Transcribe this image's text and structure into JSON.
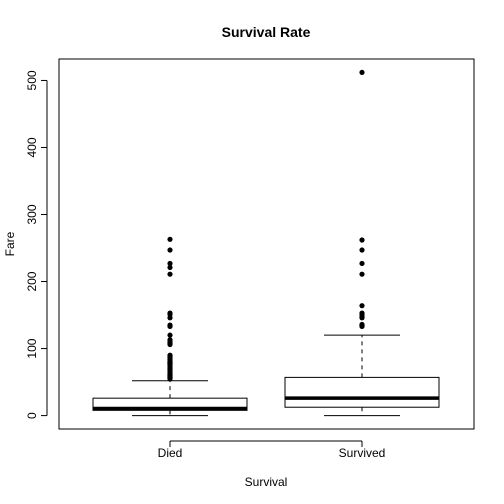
{
  "chart_data": {
    "type": "box",
    "title": "Survival Rate",
    "xlabel": "Survival",
    "ylabel": "Fare",
    "categories": [
      "Died",
      "Survived"
    ],
    "yticks": [
      "0",
      "100",
      "200",
      "300",
      "400",
      "500"
    ],
    "ylim": [
      -20,
      532
    ],
    "grid": false,
    "legend": "none",
    "series": [
      {
        "category": "Died",
        "whisker_low": 0,
        "q1": 7.85,
        "median": 10.5,
        "q3": 26,
        "whisker_high": 52,
        "outliers": [
          55,
          56,
          56.5,
          57,
          58,
          59,
          59.4,
          61,
          61.2,
          63,
          65,
          66.6,
          69.3,
          69.5,
          71,
          73.5,
          75,
          76.7,
          77.3,
          78,
          79,
          79.6,
          80,
          82.2,
          83.5,
          86.5,
          89,
          90,
          106,
          108,
          110,
          113,
          120,
          133,
          135,
          146,
          151,
          153,
          211,
          221,
          227,
          247,
          263
        ]
      },
      {
        "category": "Survived",
        "whisker_low": 0,
        "q1": 12.5,
        "median": 26,
        "q3": 57,
        "whisker_high": 120,
        "outliers": [
          133,
          134,
          135,
          136,
          146,
          148,
          151,
          153,
          164,
          211,
          227,
          247,
          262,
          512
        ]
      }
    ]
  }
}
